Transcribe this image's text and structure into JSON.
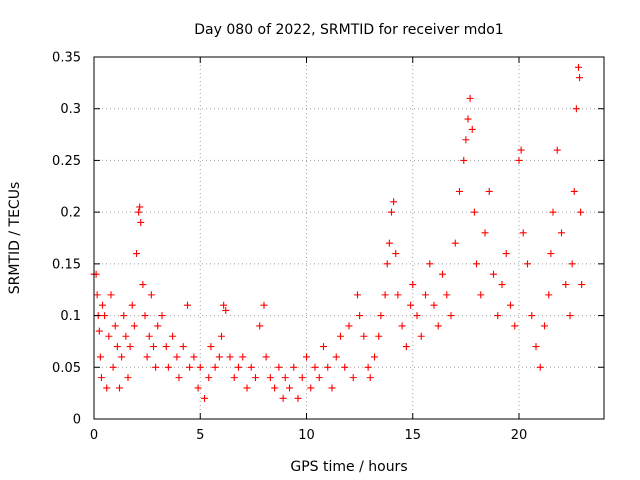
{
  "chart_data": {
    "type": "scatter",
    "title": "Day 080 of 2022, SRMTID for receiver mdo1",
    "xlabel": "GPS time / hours",
    "ylabel": "SRMTID / TECUs",
    "xlim": [
      0,
      24
    ],
    "ylim": [
      0,
      0.35
    ],
    "xticks": [
      0,
      5,
      10,
      15,
      20
    ],
    "xtick_labels": [
      "0",
      "5",
      "10",
      "15",
      "20"
    ],
    "yticks": [
      0,
      0.05,
      0.1,
      0.15,
      0.2,
      0.25,
      0.3,
      0.35
    ],
    "ytick_labels": [
      "0",
      "0.05",
      "0.1",
      "0.15",
      "0.2",
      "0.25",
      "0.3",
      "0.35"
    ],
    "grid": true,
    "marker": "+",
    "color": "#ff0000",
    "series": [
      {
        "name": "SRMTID",
        "points": [
          [
            0.0,
            0.14
          ],
          [
            0.1,
            0.14
          ],
          [
            0.15,
            0.12
          ],
          [
            0.2,
            0.1
          ],
          [
            0.25,
            0.085
          ],
          [
            0.3,
            0.06
          ],
          [
            0.35,
            0.04
          ],
          [
            0.4,
            0.11
          ],
          [
            0.5,
            0.1
          ],
          [
            0.6,
            0.03
          ],
          [
            0.7,
            0.08
          ],
          [
            0.8,
            0.12
          ],
          [
            0.9,
            0.05
          ],
          [
            1.0,
            0.09
          ],
          [
            1.1,
            0.07
          ],
          [
            1.2,
            0.03
          ],
          [
            1.3,
            0.06
          ],
          [
            1.4,
            0.1
          ],
          [
            1.5,
            0.08
          ],
          [
            1.6,
            0.04
          ],
          [
            1.7,
            0.07
          ],
          [
            1.8,
            0.11
          ],
          [
            1.9,
            0.09
          ],
          [
            2.0,
            0.16
          ],
          [
            2.1,
            0.2
          ],
          [
            2.15,
            0.205
          ],
          [
            2.2,
            0.19
          ],
          [
            2.3,
            0.13
          ],
          [
            2.4,
            0.1
          ],
          [
            2.5,
            0.06
          ],
          [
            2.6,
            0.08
          ],
          [
            2.7,
            0.12
          ],
          [
            2.8,
            0.07
          ],
          [
            2.9,
            0.05
          ],
          [
            3.0,
            0.09
          ],
          [
            3.2,
            0.1
          ],
          [
            3.4,
            0.07
          ],
          [
            3.5,
            0.05
          ],
          [
            3.7,
            0.08
          ],
          [
            3.9,
            0.06
          ],
          [
            4.0,
            0.04
          ],
          [
            4.2,
            0.07
          ],
          [
            4.4,
            0.11
          ],
          [
            4.5,
            0.05
          ],
          [
            4.7,
            0.06
          ],
          [
            4.9,
            0.03
          ],
          [
            5.0,
            0.05
          ],
          [
            5.2,
            0.02
          ],
          [
            5.4,
            0.04
          ],
          [
            5.5,
            0.07
          ],
          [
            5.7,
            0.05
          ],
          [
            5.9,
            0.06
          ],
          [
            6.0,
            0.08
          ],
          [
            6.1,
            0.11
          ],
          [
            6.2,
            0.105
          ],
          [
            6.4,
            0.06
          ],
          [
            6.6,
            0.04
          ],
          [
            6.8,
            0.05
          ],
          [
            7.0,
            0.06
          ],
          [
            7.2,
            0.03
          ],
          [
            7.4,
            0.05
          ],
          [
            7.6,
            0.04
          ],
          [
            7.8,
            0.09
          ],
          [
            8.0,
            0.11
          ],
          [
            8.1,
            0.06
          ],
          [
            8.3,
            0.04
          ],
          [
            8.5,
            0.03
          ],
          [
            8.7,
            0.05
          ],
          [
            8.9,
            0.02
          ],
          [
            9.0,
            0.04
          ],
          [
            9.2,
            0.03
          ],
          [
            9.4,
            0.05
          ],
          [
            9.6,
            0.02
          ],
          [
            9.8,
            0.04
          ],
          [
            10.0,
            0.06
          ],
          [
            10.2,
            0.03
          ],
          [
            10.4,
            0.05
          ],
          [
            10.6,
            0.04
          ],
          [
            10.8,
            0.07
          ],
          [
            11.0,
            0.05
          ],
          [
            11.2,
            0.03
          ],
          [
            11.4,
            0.06
          ],
          [
            11.6,
            0.08
          ],
          [
            11.8,
            0.05
          ],
          [
            12.0,
            0.09
          ],
          [
            12.2,
            0.04
          ],
          [
            12.4,
            0.12
          ],
          [
            12.5,
            0.1
          ],
          [
            12.7,
            0.08
          ],
          [
            12.9,
            0.05
          ],
          [
            13.0,
            0.04
          ],
          [
            13.2,
            0.06
          ],
          [
            13.4,
            0.08
          ],
          [
            13.5,
            0.1
          ],
          [
            13.7,
            0.12
          ],
          [
            13.8,
            0.15
          ],
          [
            13.9,
            0.17
          ],
          [
            14.0,
            0.2
          ],
          [
            14.1,
            0.21
          ],
          [
            14.2,
            0.16
          ],
          [
            14.3,
            0.12
          ],
          [
            14.5,
            0.09
          ],
          [
            14.7,
            0.07
          ],
          [
            14.9,
            0.11
          ],
          [
            15.0,
            0.13
          ],
          [
            15.2,
            0.1
          ],
          [
            15.4,
            0.08
          ],
          [
            15.6,
            0.12
          ],
          [
            15.8,
            0.15
          ],
          [
            16.0,
            0.11
          ],
          [
            16.2,
            0.09
          ],
          [
            16.4,
            0.14
          ],
          [
            16.6,
            0.12
          ],
          [
            16.8,
            0.1
          ],
          [
            17.0,
            0.17
          ],
          [
            17.2,
            0.22
          ],
          [
            17.4,
            0.25
          ],
          [
            17.5,
            0.27
          ],
          [
            17.6,
            0.29
          ],
          [
            17.7,
            0.31
          ],
          [
            17.8,
            0.28
          ],
          [
            17.9,
            0.2
          ],
          [
            18.0,
            0.15
          ],
          [
            18.2,
            0.12
          ],
          [
            18.4,
            0.18
          ],
          [
            18.6,
            0.22
          ],
          [
            18.8,
            0.14
          ],
          [
            19.0,
            0.1
          ],
          [
            19.2,
            0.13
          ],
          [
            19.4,
            0.16
          ],
          [
            19.6,
            0.11
          ],
          [
            19.8,
            0.09
          ],
          [
            20.0,
            0.25
          ],
          [
            20.1,
            0.26
          ],
          [
            20.2,
            0.18
          ],
          [
            20.4,
            0.15
          ],
          [
            20.6,
            0.1
          ],
          [
            20.8,
            0.07
          ],
          [
            21.0,
            0.05
          ],
          [
            21.2,
            0.09
          ],
          [
            21.4,
            0.12
          ],
          [
            21.5,
            0.16
          ],
          [
            21.6,
            0.2
          ],
          [
            21.8,
            0.26
          ],
          [
            22.0,
            0.18
          ],
          [
            22.2,
            0.13
          ],
          [
            22.4,
            0.1
          ],
          [
            22.5,
            0.15
          ],
          [
            22.6,
            0.22
          ],
          [
            22.7,
            0.3
          ],
          [
            22.8,
            0.34
          ],
          [
            22.85,
            0.33
          ],
          [
            22.9,
            0.2
          ],
          [
            22.95,
            0.13
          ]
        ]
      }
    ]
  }
}
